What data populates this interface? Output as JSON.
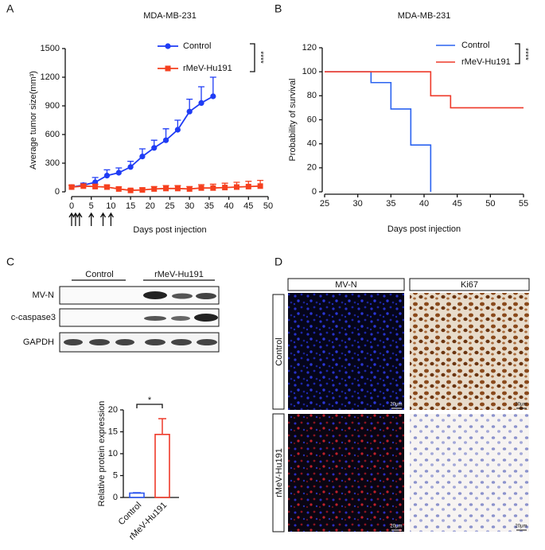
{
  "panel_labels": [
    "A",
    "B",
    "C",
    "D"
  ],
  "chart_data": [
    {
      "type": "line",
      "title": "MDA-MB-231",
      "x_label": "Days post injection",
      "y_label": "Average tumor size(mm³)",
      "xlim": [
        0,
        50
      ],
      "xticks": [
        0,
        5,
        10,
        15,
        20,
        25,
        30,
        35,
        40,
        45,
        50
      ],
      "ylim": [
        0,
        1500
      ],
      "yticks": [
        0,
        300,
        600,
        900,
        1200,
        1500
      ],
      "significance": "****",
      "arrows_x": [
        0,
        1,
        2,
        5,
        8,
        10
      ],
      "series": [
        {
          "name": "Control",
          "color": "#1f3cf5",
          "marker": "circle",
          "x": [
            0,
            3,
            6,
            9,
            12,
            15,
            18,
            21,
            24,
            27,
            30,
            33,
            36
          ],
          "values": [
            50,
            70,
            100,
            170,
            200,
            260,
            370,
            460,
            540,
            650,
            840,
            930,
            1000
          ],
          "errors": [
            20,
            20,
            50,
            60,
            50,
            60,
            80,
            80,
            120,
            100,
            130,
            170,
            200
          ]
        },
        {
          "name": "rMeV-Hu191",
          "color": "#f5401f",
          "marker": "square",
          "x": [
            0,
            3,
            6,
            9,
            12,
            15,
            18,
            21,
            24,
            27,
            30,
            33,
            36,
            39,
            42,
            45,
            48
          ],
          "values": [
            50,
            60,
            55,
            50,
            30,
            15,
            20,
            30,
            35,
            35,
            30,
            40,
            40,
            45,
            50,
            55,
            60
          ],
          "errors": [
            20,
            20,
            25,
            20,
            20,
            15,
            20,
            25,
            30,
            30,
            25,
            35,
            40,
            45,
            50,
            55,
            60
          ]
        }
      ]
    },
    {
      "type": "step",
      "title": "MDA-MB-231",
      "x_label": "Days post injection",
      "y_label": "Probability of survival",
      "xlim": [
        25,
        55
      ],
      "xticks": [
        25,
        30,
        35,
        40,
        45,
        50,
        55
      ],
      "ylim": [
        0,
        120
      ],
      "yticks": [
        0,
        20,
        40,
        60,
        80,
        100,
        120
      ],
      "significance": "****",
      "series": [
        {
          "name": "Control",
          "color": "#2b63f0",
          "x": [
            25,
            32,
            35,
            38,
            41
          ],
          "values": [
            100,
            91,
            69,
            39,
            0
          ]
        },
        {
          "name": "rMeV-Hu191",
          "color": "#ee3a2a",
          "x": [
            25,
            41,
            44,
            55
          ],
          "values": [
            100,
            80,
            70,
            70
          ]
        }
      ]
    },
    {
      "type": "bar",
      "y_label": "Relative protein expression",
      "categories": [
        "Control",
        "rMeV-Hu191"
      ],
      "values": [
        1,
        14.4
      ],
      "errors": [
        0.1,
        3.6
      ],
      "colors": [
        "#2b55f0",
        "#ee3a2a"
      ],
      "ylim": [
        0,
        20
      ],
      "yticks": [
        0,
        5,
        10,
        15,
        20
      ],
      "significance": "*"
    }
  ],
  "western_blot": {
    "groups": [
      "Control",
      "rMeV-Hu191"
    ],
    "rows": [
      "MV-N",
      "c-caspase3",
      "GAPDH"
    ]
  },
  "ihc": {
    "columns": [
      "MV-N",
      "Ki67"
    ],
    "rows": [
      "Control",
      "rMeV-Hu191"
    ],
    "scale_bar": "20μm"
  }
}
